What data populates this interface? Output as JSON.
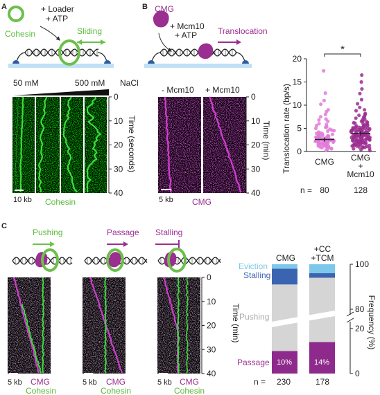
{
  "colors": {
    "cohesin_green": "#6cc04a",
    "cmg_purple": "#9b2e91",
    "cmg_light": "#e07bd9",
    "kymo_green": "#3ddc3d",
    "kymo_magenta": "#d23cd2",
    "eviction": "#7dc8ea",
    "stalling": "#3b64b0",
    "pushing": "#d5d5d5",
    "passage": "#8e2a8c",
    "surface": "#bfe0f5"
  },
  "panel_a": {
    "letter": "A",
    "cohesin": "Cohesin",
    "loader_line1": "+ Loader",
    "loader_line2": "+ ATP",
    "sliding": "Sliding",
    "salt_low": "50 mM",
    "salt_high": "500 mM",
    "salt_unit": "NaCl",
    "time_axis": "Time (seconds)",
    "ticks": [
      "0",
      "10",
      "20",
      "30",
      "40"
    ],
    "scale_bar": "10 kb",
    "channel": "Cohesin"
  },
  "panel_b": {
    "letter": "B",
    "cmg": "CMG",
    "mcm_line1": "+ Mcm10",
    "mcm_line2": "+ ATP",
    "translocation": "Translocation",
    "minus_mcm": "- Mcm10",
    "plus_mcm": "+ Mcm10",
    "time_axis": "Time (min)",
    "ticks": [
      "0",
      "10",
      "20",
      "30",
      "40"
    ],
    "scale_bar": "5 kb",
    "channel": "CMG"
  },
  "chart_data": [
    {
      "type": "scatter",
      "ylabel": "Translocation rate (bp/s)",
      "ylim": [
        0,
        20
      ],
      "yticks": [
        "0",
        "5",
        "10",
        "15",
        "20"
      ],
      "categories": [
        "CMG",
        "CMG + Mcm10"
      ],
      "cat_label_line1": [
        "CMG",
        "CMG"
      ],
      "cat_label_line2": [
        "",
        "+"
      ],
      "cat_label_line3": [
        "",
        "Mcm10"
      ],
      "n_prefix": "n = ",
      "n": [
        "80",
        "128"
      ],
      "means": [
        2.6,
        3.9
      ],
      "significance": "*",
      "points_cmg": [
        0.3,
        0.5,
        0.7,
        0.8,
        1.0,
        1.1,
        1.2,
        1.3,
        1.4,
        1.5,
        1.5,
        1.6,
        1.7,
        1.8,
        1.9,
        2.0,
        2.0,
        2.1,
        2.2,
        2.2,
        2.3,
        2.4,
        2.4,
        2.5,
        2.5,
        2.6,
        2.7,
        2.8,
        2.9,
        3.0,
        3.1,
        3.2,
        3.3,
        3.4,
        3.5,
        3.6,
        3.8,
        4.0,
        4.2,
        4.5,
        4.8,
        5.0,
        5.3,
        5.6,
        6.0,
        6.5,
        7.0,
        7.5,
        8.0,
        9.0,
        10.2,
        12.6,
        17.4,
        1.2,
        1.8,
        2.3,
        2.9,
        3.4,
        0.9,
        1.6,
        2.1,
        2.6,
        3.7,
        4.4,
        5.2,
        0.6,
        1.3,
        1.9,
        2.4,
        2.8,
        3.1,
        3.9,
        4.6,
        5.8,
        6.8,
        1.0,
        2.2,
        3.0,
        8.6,
        11.0
      ],
      "points_mcm10": [
        0.2,
        0.4,
        0.6,
        0.8,
        1.0,
        1.1,
        1.3,
        1.4,
        1.5,
        1.6,
        1.8,
        1.9,
        2.0,
        2.1,
        2.2,
        2.3,
        2.4,
        2.5,
        2.6,
        2.7,
        2.8,
        2.9,
        3.0,
        3.1,
        3.2,
        3.3,
        3.4,
        3.5,
        3.6,
        3.7,
        3.8,
        3.9,
        4.0,
        4.1,
        4.2,
        4.3,
        4.4,
        4.5,
        4.6,
        4.7,
        4.8,
        5.0,
        5.2,
        5.4,
        5.6,
        5.8,
        6.0,
        6.3,
        6.6,
        7.0,
        7.4,
        7.8,
        8.2,
        8.8,
        9.5,
        10.3,
        11.2,
        12.5,
        13.5,
        15.0,
        1.2,
        1.7,
        2.2,
        2.6,
        3.0,
        3.4,
        3.8,
        4.2,
        4.6,
        5.0,
        5.5,
        6.1,
        0.9,
        1.5,
        2.0,
        2.5,
        2.9,
        3.3,
        3.7,
        4.1,
        4.5,
        4.9,
        5.3,
        5.9,
        6.5,
        7.2,
        0.7,
        1.2,
        1.8,
        2.3,
        2.8,
        3.2,
        3.6,
        4.0,
        4.4,
        4.8,
        5.2,
        5.7,
        6.4,
        7.6,
        1.0,
        1.6,
        2.1,
        2.7,
        3.1,
        3.5,
        3.9,
        4.3,
        4.7,
        5.1,
        5.6,
        6.2,
        6.9,
        8.0,
        9.0,
        2.4,
        3.0,
        3.6,
        4.2,
        4.8,
        1.4,
        2.0,
        2.6,
        3.2,
        3.8,
        4.4,
        5.0,
        16.5
      ]
    },
    {
      "type": "bar",
      "title": "",
      "ylabel": "Frequency (%)",
      "ytick_top": [
        "100",
        "80"
      ],
      "ytick_bottom": [
        "20",
        "0"
      ],
      "categories": [
        "CMG",
        "+CC +TCM"
      ],
      "cat_label_line1": [
        "CMG",
        "+CC"
      ],
      "cat_label_line2": [
        "",
        "+TCM"
      ],
      "n_prefix": "n = ",
      "n": [
        "230",
        "178"
      ],
      "series": [
        {
          "name": "Passage",
          "values": [
            10,
            14
          ]
        },
        {
          "name": "Pushing",
          "values": [
            81,
            80
          ]
        },
        {
          "name": "Stalling",
          "values": [
            7,
            2
          ]
        },
        {
          "name": "Eviction",
          "values": [
            2,
            4
          ]
        }
      ],
      "passage_labels": [
        "10%",
        "14%"
      ]
    }
  ],
  "panel_c": {
    "letter": "C",
    "pushing": "Pushing",
    "passage": "Passage",
    "stalling": "Stalling",
    "time_axis": "Time (min)",
    "ticks": [
      "0",
      "10",
      "20",
      "30",
      "40"
    ],
    "scale_bar": "5 kb",
    "cmg": "CMG",
    "cohesin": "Cohesin",
    "eviction": "Eviction",
    "stalling_legend": "Stalling",
    "pushing_legend": "Pushing",
    "passage_legend": "Passage"
  }
}
